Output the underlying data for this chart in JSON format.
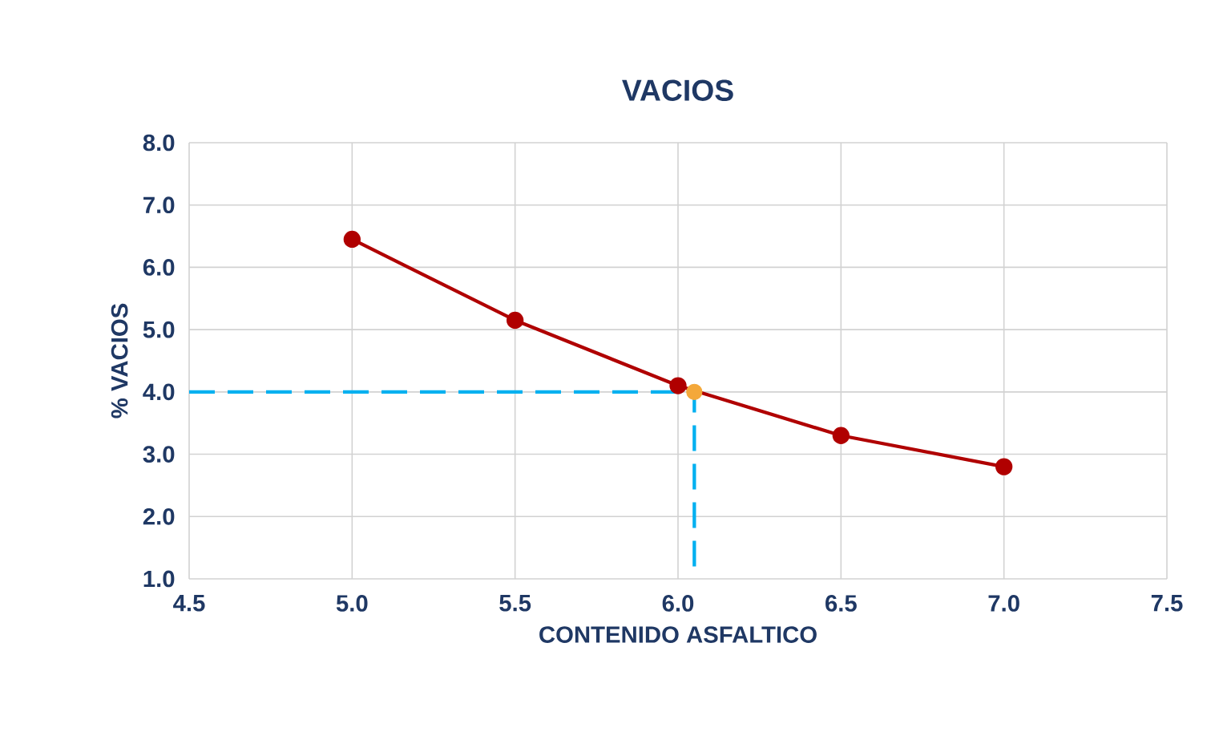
{
  "chart_data": {
    "type": "line",
    "title": "VACIOS",
    "xlabel": "CONTENIDO ASFALTICO",
    "ylabel": "% VACIOS",
    "xlim": [
      4.5,
      7.5
    ],
    "ylim": [
      1.0,
      8.0
    ],
    "xticks": [
      {
        "value": 4.5,
        "label": "4.5"
      },
      {
        "value": 5.0,
        "label": "5.0"
      },
      {
        "value": 5.5,
        "label": "5.5"
      },
      {
        "value": 6.0,
        "label": "6.0"
      },
      {
        "value": 6.5,
        "label": "6.5"
      },
      {
        "value": 7.0,
        "label": "7.0"
      },
      {
        "value": 7.5,
        "label": "7.5"
      }
    ],
    "yticks": [
      {
        "value": 1,
        "label": "1.0"
      },
      {
        "value": 2,
        "label": "2.0"
      },
      {
        "value": 3,
        "label": "3.0"
      },
      {
        "value": 4,
        "label": "4.0"
      },
      {
        "value": 5,
        "label": "5.0"
      },
      {
        "value": 6,
        "label": "6.0"
      },
      {
        "value": 7,
        "label": "7.0"
      },
      {
        "value": 8,
        "label": "8.0"
      }
    ],
    "grid": true,
    "series": [
      {
        "color": "#00b0f0",
        "line_style": "dashed",
        "marker": "none",
        "x": [
          4.5,
          6.05,
          6.05
        ],
        "values": [
          4.0,
          4.0,
          1.0
        ]
      },
      {
        "color": "#b00000",
        "line_style": "solid",
        "marker": "circle",
        "x": [
          5.0,
          5.5,
          6.0,
          6.5,
          7.0
        ],
        "values": [
          6.45,
          5.15,
          4.1,
          3.3,
          2.8
        ]
      },
      {
        "type": "scatter",
        "color": "#f4a83a",
        "marker": "circle",
        "x": [
          6.05
        ],
        "values": [
          4.0
        ]
      }
    ]
  }
}
